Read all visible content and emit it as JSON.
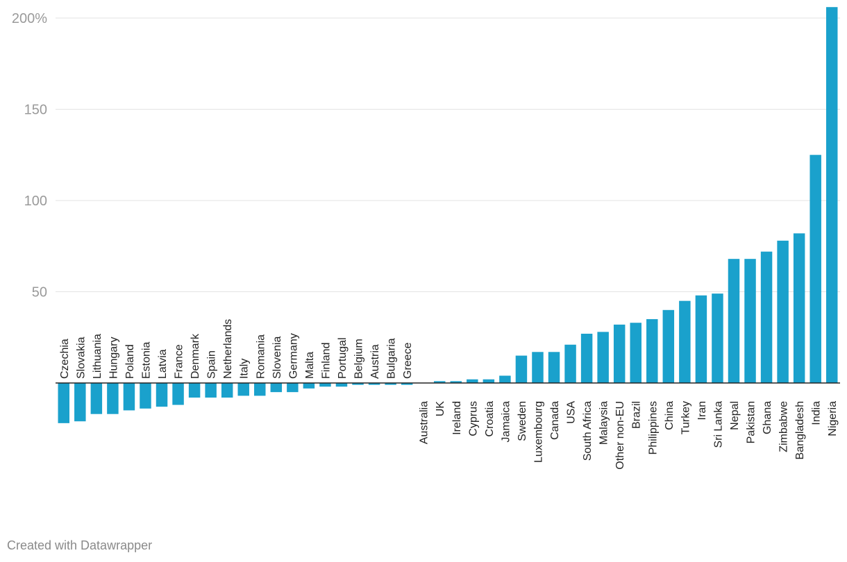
{
  "chart_data": {
    "type": "bar",
    "categories": [
      "Czechia",
      "Slovakia",
      "Lithuania",
      "Hungary",
      "Poland",
      "Estonia",
      "Latvia",
      "France",
      "Denmark",
      "Spain",
      "Netherlands",
      "Italy",
      "Romania",
      "Slovenia",
      "Germany",
      "Malta",
      "Finland",
      "Portugal",
      "Belgium",
      "Austria",
      "Bulgaria",
      "Greece",
      "Australia",
      "UK",
      "Ireland",
      "Cyprus",
      "Croatia",
      "Jamaica",
      "Sweden",
      "Luxembourg",
      "Canada",
      "USA",
      "South Africa",
      "Malaysia",
      "Other non-EU",
      "Brazil",
      "Philippines",
      "China",
      "Turkey",
      "Iran",
      "Sri Lanka",
      "Nepal",
      "Pakistan",
      "Ghana",
      "Zimbabwe",
      "Bangladesh",
      "India",
      "Nigeria"
    ],
    "values": [
      -22,
      -21,
      -17,
      -17,
      -15,
      -14,
      -13,
      -12,
      -8,
      -8,
      -8,
      -7,
      -7,
      -5,
      -5,
      -3,
      -2,
      -2,
      -1,
      -1,
      -1,
      -1,
      0,
      1,
      1,
      2,
      2,
      4,
      15,
      17,
      17,
      21,
      27,
      28,
      32,
      33,
      35,
      40,
      45,
      48,
      49,
      68,
      68,
      72,
      78,
      82,
      125,
      206
    ],
    "ylim": [
      -22,
      206
    ],
    "yticks": [
      50,
      100,
      150,
      200
    ],
    "ytick_labels": [
      "50",
      "100",
      "150",
      "200%"
    ],
    "grid": true,
    "color": "#1aa1cc"
  },
  "footer": {
    "credit": "Created with Datawrapper"
  }
}
